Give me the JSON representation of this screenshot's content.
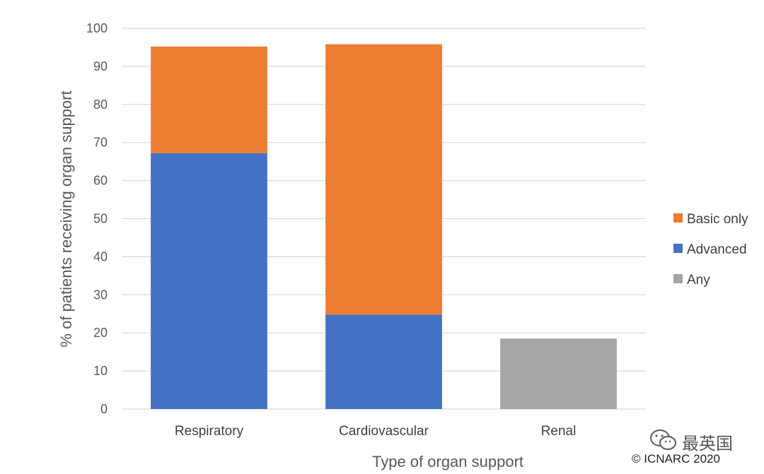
{
  "chart_data": {
    "type": "bar",
    "stacked": true,
    "categories": [
      "Respiratory",
      "Cardiovascular",
      "Renal"
    ],
    "series": [
      {
        "name": "Advanced",
        "values": [
          67.2,
          24.8,
          null
        ],
        "color": "#4472c4"
      },
      {
        "name": "Basic only",
        "values": [
          28.0,
          71.0,
          null
        ],
        "color": "#ed7d31"
      },
      {
        "name": "Any",
        "values": [
          null,
          null,
          18.5
        ],
        "color": "#a5a5a5"
      }
    ],
    "legend_order": [
      "Basic only",
      "Advanced",
      "Any"
    ],
    "xlabel": "Type of organ support",
    "ylabel": "% of patients receiving organ support",
    "ylim": [
      0,
      100
    ],
    "yticks": [
      "0",
      "10",
      "20",
      "30",
      "40",
      "50",
      "60",
      "70",
      "80",
      "90",
      "100"
    ],
    "grid": true,
    "legend_position": "right"
  },
  "watermark": {
    "text": "最英国",
    "icon": "wechat-icon"
  },
  "copyright": "© ICNARC 2020"
}
